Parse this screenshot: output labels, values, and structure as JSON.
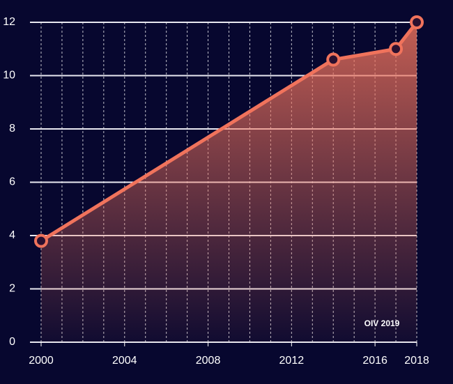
{
  "chart_data": {
    "type": "area",
    "annotation": "OIV 2019",
    "x": [
      2000,
      2014,
      2017,
      2018
    ],
    "series": [
      {
        "values": [
          3.8,
          10.6,
          11,
          12
        ],
        "color": "#f0735c"
      }
    ],
    "xlim": [
      2000,
      2018
    ],
    "xticks": [
      2000,
      2004,
      2008,
      2012,
      2016,
      2018
    ],
    "ylim": [
      0,
      12
    ],
    "yticks": [
      0,
      2,
      4,
      6,
      8,
      10,
      12
    ],
    "grid": true
  }
}
